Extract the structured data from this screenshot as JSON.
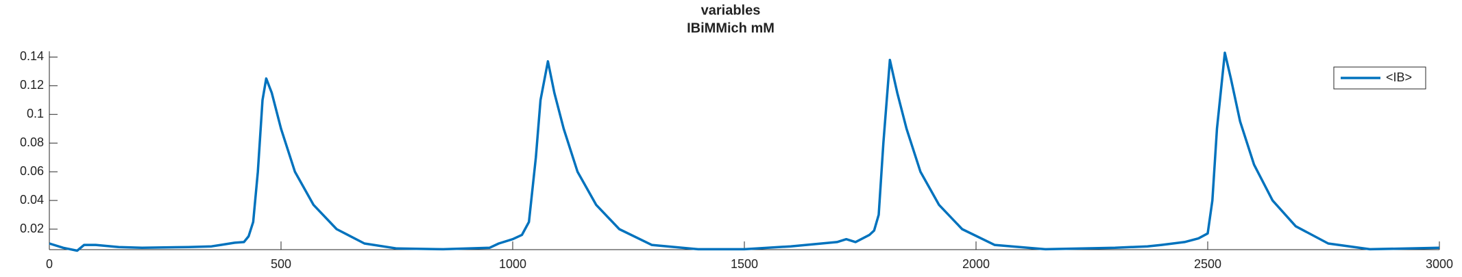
{
  "chart_data": {
    "type": "line",
    "title": "variables",
    "subtitle": "IBiMMich mM",
    "x": [
      0,
      30,
      60,
      75,
      100,
      150,
      200,
      300,
      350,
      370,
      400,
      420,
      430,
      440,
      450,
      460,
      468,
      480,
      500,
      530,
      570,
      620,
      680,
      750,
      850,
      950,
      970,
      1000,
      1020,
      1035,
      1050,
      1060,
      1076,
      1090,
      1110,
      1140,
      1180,
      1230,
      1300,
      1400,
      1500,
      1600,
      1700,
      1720,
      1740,
      1770,
      1780,
      1790,
      1800,
      1814,
      1830,
      1850,
      1880,
      1920,
      1970,
      2040,
      2150,
      2300,
      2370,
      2400,
      2450,
      2480,
      2500,
      2510,
      2520,
      2537,
      2550,
      2570,
      2600,
      2640,
      2690,
      2760,
      2850,
      3000
    ],
    "series": [
      {
        "name": "<IB>",
        "color": "#0072bd",
        "values": [
          0.01,
          0.007,
          0.005,
          0.009,
          0.009,
          0.0075,
          0.007,
          0.0075,
          0.008,
          0.009,
          0.0105,
          0.011,
          0.015,
          0.025,
          0.06,
          0.11,
          0.125,
          0.115,
          0.09,
          0.06,
          0.037,
          0.02,
          0.01,
          0.0065,
          0.006,
          0.007,
          0.01,
          0.013,
          0.016,
          0.025,
          0.07,
          0.11,
          0.137,
          0.115,
          0.09,
          0.06,
          0.037,
          0.02,
          0.009,
          0.006,
          0.006,
          0.008,
          0.011,
          0.013,
          0.011,
          0.016,
          0.019,
          0.03,
          0.08,
          0.138,
          0.115,
          0.09,
          0.06,
          0.037,
          0.02,
          0.009,
          0.006,
          0.007,
          0.008,
          0.009,
          0.011,
          0.0135,
          0.017,
          0.04,
          0.09,
          0.143,
          0.125,
          0.095,
          0.065,
          0.04,
          0.022,
          0.01,
          0.006,
          0.007
        ]
      }
    ],
    "xlim": [
      0,
      3000
    ],
    "xticks": [
      0,
      500,
      1000,
      1500,
      2000,
      2500,
      3000
    ],
    "ylim": [
      0.0057,
      0.144
    ],
    "yticks": [
      0.02,
      0.04,
      0.06,
      0.08,
      0.1,
      0.12,
      0.14
    ],
    "legend": "northeast",
    "grid": false
  }
}
